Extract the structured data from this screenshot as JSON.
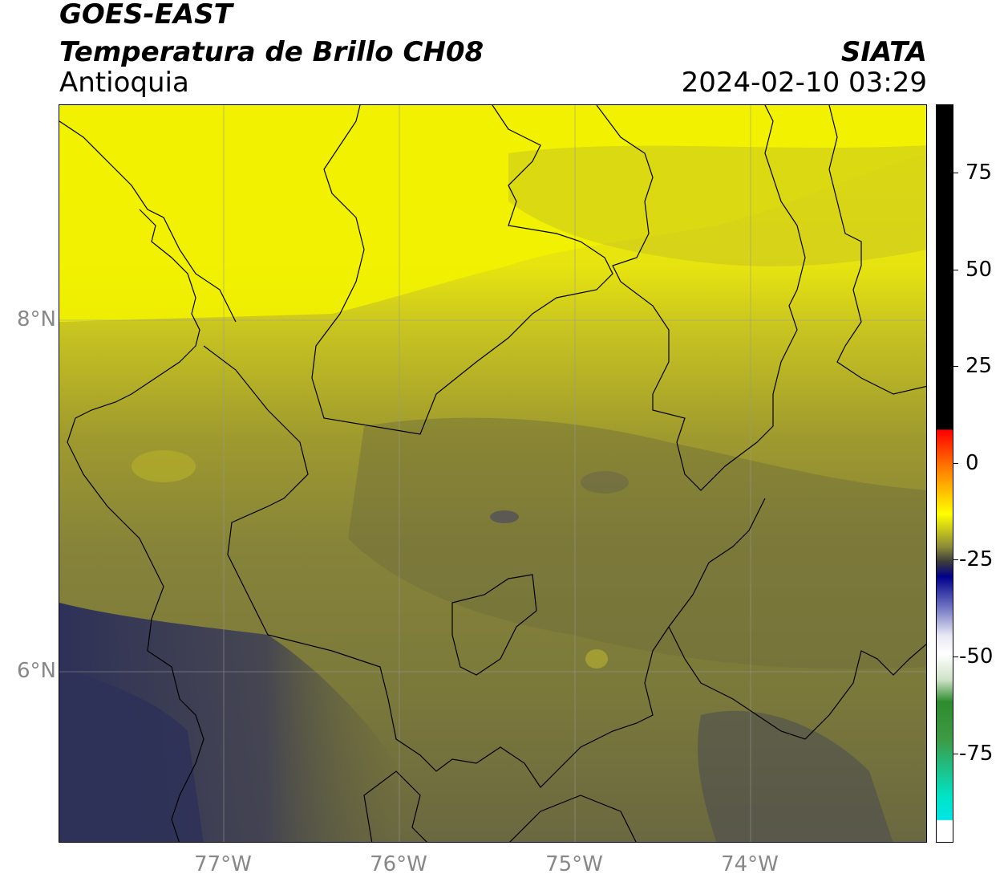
{
  "header": {
    "satellite": "GOES-EAST",
    "product": "Temperatura de Brillo CH08",
    "region": "Antioquia",
    "agency": "SIATA",
    "datetime": "2024-02-10 03:29"
  },
  "axes": {
    "lat_ticks": [
      "8°N",
      "6°N"
    ],
    "lon_ticks": [
      "77°W",
      "76°W",
      "75°W",
      "74°W"
    ]
  },
  "colorbar": {
    "ticks": [
      "75",
      "50",
      "25",
      "0",
      "-25",
      "-50",
      "-75"
    ],
    "colors": {
      "top_black": "#000000",
      "red": "#ff0000",
      "orange": "#ff8c00",
      "yellow": "#ffff00",
      "dark_olive": "#3a3a3a",
      "navy": "#00008b",
      "white": "#ffffff",
      "green": "#2e8b2e",
      "cyan": "#00e5e5"
    }
  },
  "map_colors": {
    "bright_yellow": "#f2f200",
    "yellow_olive": "#c9c520",
    "olive": "#8f8a35",
    "dark_olive": "#5f5d3c",
    "slate": "#3c3d55",
    "navy_slate": "#2e3158"
  }
}
